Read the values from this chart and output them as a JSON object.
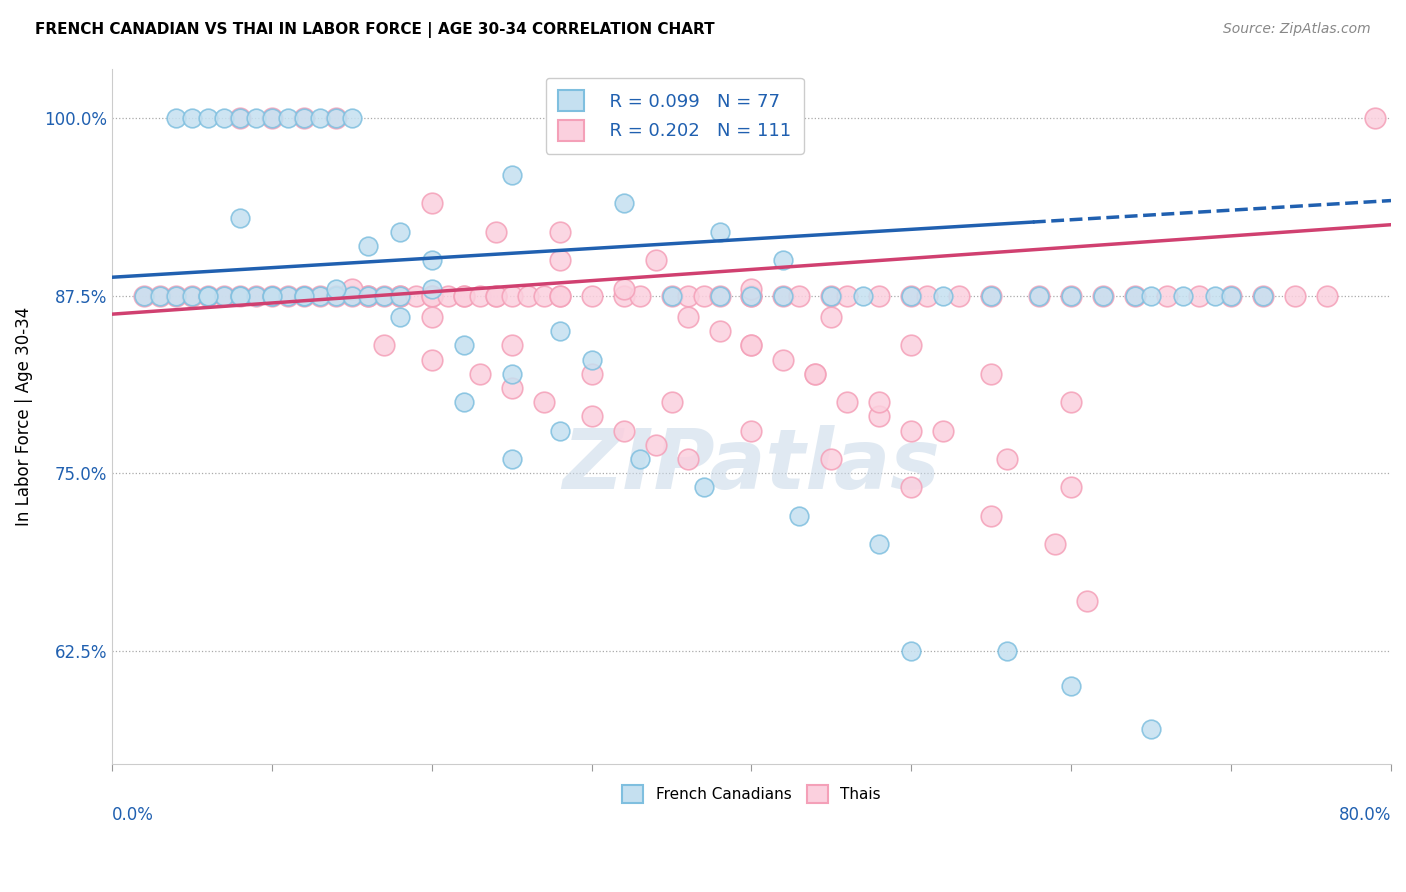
{
  "title": "FRENCH CANADIAN VS THAI IN LABOR FORCE | AGE 30-34 CORRELATION CHART",
  "source": "Source: ZipAtlas.com",
  "ylabel": "In Labor Force | Age 30-34",
  "blue_color": "#7fbfdf",
  "pink_color": "#f4a0b8",
  "blue_fill": "#c5e0f0",
  "pink_fill": "#fbd0de",
  "blue_line_color": "#2060b0",
  "pink_line_color": "#d04070",
  "ytick_labels": [
    "62.5%",
    "75.0%",
    "87.5%",
    "100.0%"
  ],
  "ytick_values": [
    0.625,
    0.75,
    0.875,
    1.0
  ],
  "xmin": 0.0,
  "xmax": 0.8,
  "ymin": 0.545,
  "ymax": 1.035,
  "legend_r_blue": "R = 0.099",
  "legend_n_blue": "N = 77",
  "legend_r_pink": "R = 0.202",
  "legend_n_pink": "N = 111",
  "legend_label_blue": "French Canadians",
  "legend_label_pink": "Thais",
  "blue_x": [
    0.02,
    0.03,
    0.04,
    0.04,
    0.05,
    0.05,
    0.06,
    0.06,
    0.07,
    0.07,
    0.08,
    0.08,
    0.09,
    0.09,
    0.1,
    0.1,
    0.11,
    0.11,
    0.12,
    0.12,
    0.13,
    0.13,
    0.14,
    0.14,
    0.15,
    0.15,
    0.16,
    0.17,
    0.18,
    0.1,
    0.12,
    0.08,
    0.06,
    0.35,
    0.38,
    0.4,
    0.42,
    0.45,
    0.47,
    0.5,
    0.52,
    0.55,
    0.58,
    0.6,
    0.62,
    0.64,
    0.65,
    0.67,
    0.69,
    0.7,
    0.72,
    0.38,
    0.42,
    0.18,
    0.22,
    0.25,
    0.2,
    0.28,
    0.3,
    0.14,
    0.08,
    0.25,
    0.32,
    0.16,
    0.18,
    0.2,
    0.22,
    0.28,
    0.33,
    0.37,
    0.43,
    0.48,
    0.25,
    0.5,
    0.56,
    0.6,
    0.65
  ],
  "blue_y": [
    0.875,
    0.875,
    0.875,
    1.0,
    0.875,
    1.0,
    0.875,
    1.0,
    0.875,
    1.0,
    0.875,
    1.0,
    0.875,
    1.0,
    0.875,
    1.0,
    0.875,
    1.0,
    0.875,
    1.0,
    0.875,
    1.0,
    0.875,
    1.0,
    0.875,
    1.0,
    0.875,
    0.875,
    0.875,
    0.875,
    0.875,
    0.875,
    0.875,
    0.875,
    0.875,
    0.875,
    0.875,
    0.875,
    0.875,
    0.875,
    0.875,
    0.875,
    0.875,
    0.875,
    0.875,
    0.875,
    0.875,
    0.875,
    0.875,
    0.875,
    0.875,
    0.92,
    0.9,
    0.86,
    0.84,
    0.82,
    0.88,
    0.85,
    0.83,
    0.88,
    0.93,
    0.96,
    0.94,
    0.91,
    0.92,
    0.9,
    0.8,
    0.78,
    0.76,
    0.74,
    0.72,
    0.7,
    0.76,
    0.625,
    0.625,
    0.6,
    0.57
  ],
  "pink_x": [
    0.02,
    0.03,
    0.04,
    0.05,
    0.06,
    0.07,
    0.08,
    0.08,
    0.09,
    0.1,
    0.1,
    0.11,
    0.12,
    0.12,
    0.13,
    0.14,
    0.14,
    0.15,
    0.16,
    0.16,
    0.17,
    0.18,
    0.18,
    0.19,
    0.2,
    0.2,
    0.21,
    0.22,
    0.22,
    0.23,
    0.24,
    0.24,
    0.25,
    0.26,
    0.27,
    0.28,
    0.28,
    0.3,
    0.32,
    0.33,
    0.35,
    0.36,
    0.37,
    0.38,
    0.4,
    0.4,
    0.42,
    0.43,
    0.45,
    0.46,
    0.48,
    0.5,
    0.51,
    0.53,
    0.55,
    0.58,
    0.6,
    0.62,
    0.64,
    0.66,
    0.68,
    0.7,
    0.72,
    0.74,
    0.76,
    0.79,
    0.17,
    0.2,
    0.23,
    0.25,
    0.27,
    0.3,
    0.32,
    0.34,
    0.36,
    0.38,
    0.4,
    0.42,
    0.44,
    0.46,
    0.48,
    0.5,
    0.28,
    0.34,
    0.4,
    0.45,
    0.5,
    0.55,
    0.6,
    0.2,
    0.24,
    0.28,
    0.32,
    0.36,
    0.4,
    0.44,
    0.48,
    0.52,
    0.56,
    0.6,
    0.15,
    0.2,
    0.25,
    0.3,
    0.35,
    0.4,
    0.45,
    0.5,
    0.55,
    0.59,
    0.61
  ],
  "pink_y": [
    0.875,
    0.875,
    0.875,
    0.875,
    0.875,
    0.875,
    0.875,
    1.0,
    0.875,
    0.875,
    1.0,
    0.875,
    0.875,
    1.0,
    0.875,
    0.875,
    1.0,
    0.875,
    0.875,
    0.875,
    0.875,
    0.875,
    0.875,
    0.875,
    0.875,
    0.875,
    0.875,
    0.875,
    0.875,
    0.875,
    0.875,
    0.875,
    0.875,
    0.875,
    0.875,
    0.875,
    0.875,
    0.875,
    0.875,
    0.875,
    0.875,
    0.875,
    0.875,
    0.875,
    0.875,
    0.875,
    0.875,
    0.875,
    0.875,
    0.875,
    0.875,
    0.875,
    0.875,
    0.875,
    0.875,
    0.875,
    0.875,
    0.875,
    0.875,
    0.875,
    0.875,
    0.875,
    0.875,
    0.875,
    0.875,
    1.0,
    0.84,
    0.83,
    0.82,
    0.81,
    0.8,
    0.79,
    0.78,
    0.77,
    0.76,
    0.85,
    0.84,
    0.83,
    0.82,
    0.8,
    0.79,
    0.78,
    0.92,
    0.9,
    0.88,
    0.86,
    0.84,
    0.82,
    0.8,
    0.94,
    0.92,
    0.9,
    0.88,
    0.86,
    0.84,
    0.82,
    0.8,
    0.78,
    0.76,
    0.74,
    0.88,
    0.86,
    0.84,
    0.82,
    0.8,
    0.78,
    0.76,
    0.74,
    0.72,
    0.7,
    0.66
  ],
  "blue_trend_x": [
    0.0,
    0.8
  ],
  "blue_trend_y": [
    0.888,
    0.942
  ],
  "pink_trend_x": [
    0.0,
    0.8
  ],
  "pink_trend_y": [
    0.862,
    0.925
  ],
  "watermark": "ZIPatlas",
  "title_fontsize": 11,
  "axis_label_fontsize": 12,
  "tick_fontsize": 12
}
